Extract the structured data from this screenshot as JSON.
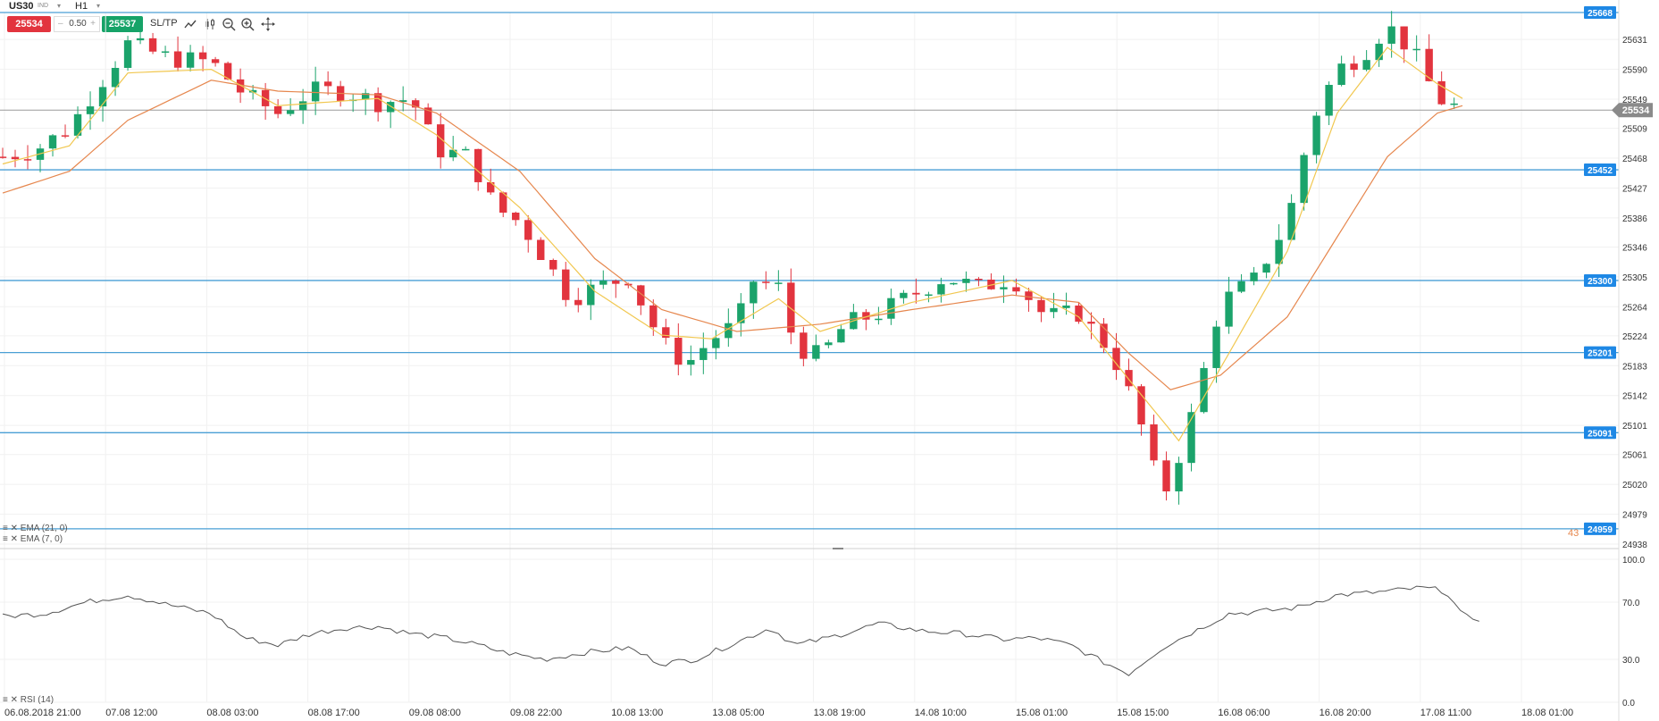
{
  "toolbar": {
    "symbol": "US30",
    "symbol_tag": "IND",
    "timeframe": "H1",
    "sell_price": "25534",
    "spread": "0.50",
    "buy_price": "25537",
    "sltp_label": "SL/TP",
    "tool_icons": [
      "line-chart-icon",
      "candle-type-icon",
      "zoom-out-icon",
      "zoom-in-icon",
      "crosshair-move-icon"
    ]
  },
  "price_axis": {
    "ticks": [
      "25631",
      "25590",
      "25549",
      "25509",
      "25468",
      "25427",
      "25386",
      "25346",
      "25305",
      "25264",
      "25224",
      "25183",
      "25142",
      "25101",
      "25061",
      "25020",
      "24979",
      "24938"
    ],
    "current_price": "25534"
  },
  "horizontal_levels": [
    "25668",
    "25452",
    "25300",
    "25201",
    "25091",
    "24959"
  ],
  "indicators": {
    "ema21_label": "EMA (21, 0)",
    "ema7_label": "EMA (7, 0)",
    "rsi_label": "RSI (14)",
    "ema_value_partial": "43"
  },
  "rsi_axis": {
    "ticks": [
      "100.0",
      "70.0",
      "30.0",
      "0.0"
    ]
  },
  "time_axis": {
    "labels": [
      "06.08.2018 21:00",
      "07.08 12:00",
      "08.08 03:00",
      "08.08 17:00",
      "09.08 08:00",
      "09.08 22:00",
      "10.08 13:00",
      "13.08 05:00",
      "13.08 19:00",
      "14.08 10:00",
      "15.08 01:00",
      "15.08 15:00",
      "16.08 06:00",
      "16.08 20:00",
      "17.08 11:00",
      "18.08 01:00"
    ]
  },
  "colors": {
    "bull": "#1ba36b",
    "bear": "#e2343e",
    "level_line": "#4a9fd5",
    "level_badge": "#1e88e5",
    "ema7": "#f1c74f",
    "ema21": "#e6874e",
    "rsi": "#555555",
    "current_badge": "#8a8a8a"
  },
  "chart_data": {
    "type": "candlestick",
    "timeframe": "H1",
    "y_range": [
      24938,
      25668
    ],
    "rsi_range": [
      0,
      100
    ],
    "close_path": [
      [
        0,
        25470
      ],
      [
        8,
        25480
      ],
      [
        16,
        25510
      ],
      [
        22,
        25560
      ],
      [
        30,
        25625
      ],
      [
        40,
        25605
      ],
      [
        50,
        25600
      ],
      [
        58,
        25555
      ],
      [
        66,
        25530
      ],
      [
        74,
        25560
      ],
      [
        82,
        25560
      ],
      [
        90,
        25545
      ],
      [
        98,
        25550
      ],
      [
        104,
        25480
      ],
      [
        112,
        25470
      ],
      [
        118,
        25400
      ],
      [
        124,
        25380
      ],
      [
        130,
        25330
      ],
      [
        136,
        25275
      ],
      [
        142,
        25290
      ],
      [
        150,
        25305
      ],
      [
        158,
        25215
      ],
      [
        164,
        25185
      ],
      [
        170,
        25220
      ],
      [
        176,
        25240
      ],
      [
        180,
        25300
      ],
      [
        186,
        25290
      ],
      [
        190,
        25210
      ],
      [
        196,
        25195
      ],
      [
        202,
        25240
      ],
      [
        210,
        25255
      ],
      [
        218,
        25280
      ],
      [
        226,
        25305
      ],
      [
        234,
        25290
      ],
      [
        242,
        25305
      ],
      [
        250,
        25250
      ],
      [
        258,
        25255
      ],
      [
        266,
        25200
      ],
      [
        272,
        25120
      ],
      [
        278,
        25000
      ],
      [
        282,
        25060
      ],
      [
        286,
        25130
      ],
      [
        292,
        25270
      ],
      [
        300,
        25300
      ],
      [
        308,
        25380
      ],
      [
        314,
        25520
      ],
      [
        320,
        25590
      ],
      [
        326,
        25610
      ],
      [
        332,
        25650
      ],
      [
        338,
        25615
      ],
      [
        344,
        25550
      ],
      [
        350,
        25534
      ]
    ],
    "ema7_path": [
      [
        0,
        25460
      ],
      [
        16,
        25485
      ],
      [
        30,
        25585
      ],
      [
        50,
        25590
      ],
      [
        66,
        25540
      ],
      [
        90,
        25550
      ],
      [
        104,
        25500
      ],
      [
        124,
        25400
      ],
      [
        142,
        25285
      ],
      [
        158,
        25225
      ],
      [
        170,
        25220
      ],
      [
        186,
        25275
      ],
      [
        196,
        25230
      ],
      [
        218,
        25270
      ],
      [
        242,
        25300
      ],
      [
        258,
        25250
      ],
      [
        272,
        25150
      ],
      [
        282,
        25080
      ],
      [
        292,
        25180
      ],
      [
        308,
        25340
      ],
      [
        320,
        25530
      ],
      [
        332,
        25620
      ],
      [
        344,
        25570
      ],
      [
        350,
        25550
      ]
    ],
    "ema21_path": [
      [
        0,
        25420
      ],
      [
        16,
        25450
      ],
      [
        30,
        25520
      ],
      [
        50,
        25575
      ],
      [
        66,
        25560
      ],
      [
        90,
        25555
      ],
      [
        104,
        25530
      ],
      [
        124,
        25450
      ],
      [
        142,
        25330
      ],
      [
        158,
        25260
      ],
      [
        176,
        25230
      ],
      [
        196,
        25240
      ],
      [
        218,
        25260
      ],
      [
        242,
        25280
      ],
      [
        258,
        25270
      ],
      [
        270,
        25200
      ],
      [
        280,
        25150
      ],
      [
        292,
        25170
      ],
      [
        308,
        25250
      ],
      [
        320,
        25360
      ],
      [
        332,
        25470
      ],
      [
        344,
        25530
      ],
      [
        350,
        25540
      ]
    ],
    "rsi_path": [
      [
        0,
        60
      ],
      [
        10,
        62
      ],
      [
        20,
        70
      ],
      [
        30,
        75
      ],
      [
        40,
        68
      ],
      [
        50,
        62
      ],
      [
        58,
        45
      ],
      [
        66,
        40
      ],
      [
        74,
        48
      ],
      [
        82,
        52
      ],
      [
        90,
        53
      ],
      [
        98,
        48
      ],
      [
        106,
        45
      ],
      [
        114,
        40
      ],
      [
        120,
        35
      ],
      [
        130,
        30
      ],
      [
        140,
        35
      ],
      [
        150,
        38
      ],
      [
        158,
        27
      ],
      [
        166,
        30
      ],
      [
        176,
        42
      ],
      [
        184,
        52
      ],
      [
        190,
        40
      ],
      [
        198,
        45
      ],
      [
        210,
        55
      ],
      [
        220,
        50
      ],
      [
        230,
        48
      ],
      [
        240,
        44
      ],
      [
        248,
        45
      ],
      [
        256,
        40
      ],
      [
        264,
        28
      ],
      [
        270,
        20
      ],
      [
        278,
        38
      ],
      [
        286,
        50
      ],
      [
        294,
        62
      ],
      [
        300,
        63
      ],
      [
        310,
        66
      ],
      [
        320,
        75
      ],
      [
        330,
        77
      ],
      [
        340,
        80
      ],
      [
        346,
        78
      ],
      [
        350,
        60
      ],
      [
        355,
        58
      ]
    ]
  }
}
